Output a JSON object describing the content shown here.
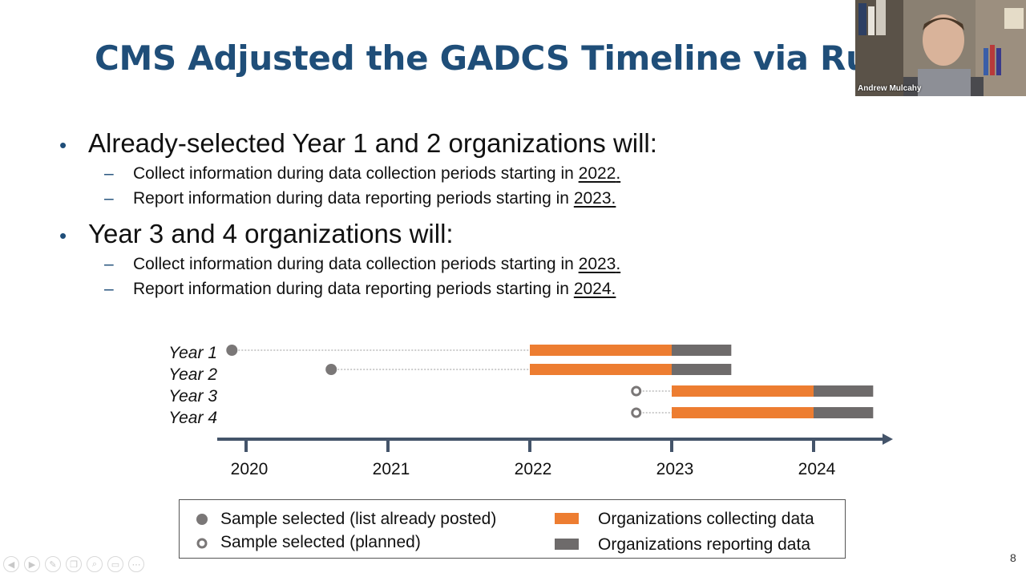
{
  "slide": {
    "title": "CMS Adjusted the GADCS Timeline via Rulema",
    "page_number": "8",
    "bullets": [
      {
        "text": "Already-selected Year 1 and 2 organizations will:",
        "subs": [
          {
            "prefix": "Collect information during data collection periods starting in ",
            "year": "2022",
            "suffix": "."
          },
          {
            "prefix": "Report information during data reporting periods starting in ",
            "year": "2023",
            "suffix": "."
          }
        ]
      },
      {
        "text": "Year 3 and 4 organizations will:",
        "subs": [
          {
            "prefix": "Collect information during data collection periods starting in ",
            "year": "2023",
            "suffix": "."
          },
          {
            "prefix": "Report information during data reporting periods starting in ",
            "year": "2024",
            "suffix": "."
          }
        ]
      }
    ]
  },
  "colors": {
    "title": "#1f4e79",
    "collecting": "#ed7d31",
    "reporting": "#6e6b6b",
    "marker": "#7a7777",
    "axis": "#44546a"
  },
  "chart_data": {
    "type": "gantt-timeline",
    "x_ticks": [
      "2020",
      "2021",
      "2022",
      "2023",
      "2024"
    ],
    "x_range": [
      2020,
      2024.5
    ],
    "rows": [
      {
        "label": "Year 1",
        "selected": 2019.9,
        "selected_type": "posted",
        "collect": [
          2022,
          2023
        ],
        "report": [
          2023,
          2023.42
        ]
      },
      {
        "label": "Year 2",
        "selected": 2020.6,
        "selected_type": "posted",
        "collect": [
          2022,
          2023
        ],
        "report": [
          2023,
          2023.42
        ]
      },
      {
        "label": "Year 3",
        "selected": 2022.75,
        "selected_type": "planned",
        "collect": [
          2023,
          2024
        ],
        "report": [
          2024,
          2024.42
        ]
      },
      {
        "label": "Year 4",
        "selected": 2022.75,
        "selected_type": "planned",
        "collect": [
          2023,
          2024
        ],
        "report": [
          2024,
          2024.42
        ]
      }
    ]
  },
  "legend": {
    "posted": "Sample selected (list already posted)",
    "planned": "Sample selected (planned)",
    "collecting": "Organizations collecting data",
    "reporting": "Organizations reporting data"
  },
  "webcam": {
    "name": "Andrew Mulcahy"
  },
  "toolbar": {
    "icons": [
      "prev-icon",
      "next-icon",
      "pen-icon",
      "copy-icon",
      "zoom-icon",
      "subtitles-icon",
      "more-icon"
    ]
  }
}
